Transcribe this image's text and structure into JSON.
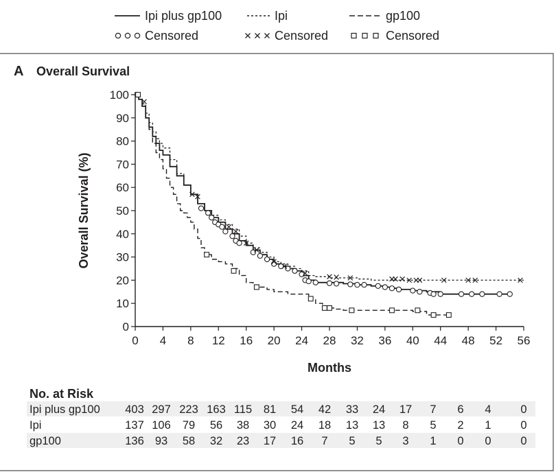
{
  "chart_data": {
    "type": "line",
    "panel_letter": "A",
    "title": "Overall Survival",
    "xlabel": "Months",
    "ylabel": "Overall Survival (%)",
    "xlim": [
      0,
      56
    ],
    "ylim": [
      0,
      100
    ],
    "xticks": [
      0,
      4,
      8,
      12,
      16,
      20,
      24,
      28,
      32,
      36,
      40,
      44,
      48,
      52,
      56
    ],
    "yticks": [
      0,
      10,
      20,
      30,
      40,
      50,
      60,
      70,
      80,
      90,
      100
    ],
    "grid": false,
    "legend_position": "top",
    "legend": {
      "lines": [
        {
          "label": "Ipi plus gp100",
          "style": "solid"
        },
        {
          "label": "Ipi",
          "style": "dotted"
        },
        {
          "label": "gp100",
          "style": "dashed"
        }
      ],
      "censored": [
        {
          "label": "Censored",
          "marker": "circle"
        },
        {
          "label": "Censored",
          "marker": "x"
        },
        {
          "label": "Censored",
          "marker": "square"
        }
      ]
    },
    "series": [
      {
        "name": "Ipi plus gp100",
        "style": "solid",
        "marker": "circle",
        "x": [
          0,
          0.5,
          1,
          1.5,
          2,
          2.5,
          3,
          3.5,
          4,
          5,
          6,
          7,
          8,
          9,
          10,
          11,
          12,
          13,
          14,
          15,
          16,
          17,
          18,
          19,
          20,
          21,
          22,
          23,
          24,
          25,
          26,
          28,
          30,
          32,
          34,
          36,
          37,
          38,
          40,
          42,
          44,
          48,
          52,
          54
        ],
        "y": [
          100,
          98,
          95,
          90,
          86,
          82,
          79,
          76,
          74,
          69,
          65,
          61,
          57,
          53,
          50,
          47,
          45,
          42,
          40,
          37,
          35,
          33,
          31,
          29,
          27,
          26,
          25,
          24,
          22,
          20,
          19,
          19,
          18.5,
          18,
          17.5,
          17,
          16.5,
          16,
          15.5,
          15,
          14,
          14,
          14,
          14
        ],
        "censored": [
          [
            0.3,
            100
          ],
          [
            9.5,
            51
          ],
          [
            10.5,
            49
          ],
          [
            11,
            47
          ],
          [
            11.5,
            45
          ],
          [
            12,
            44
          ],
          [
            12.5,
            43
          ],
          [
            13,
            41
          ],
          [
            14,
            39
          ],
          [
            14.5,
            37
          ],
          [
            15,
            36
          ],
          [
            17,
            32
          ],
          [
            18,
            30.5
          ],
          [
            19,
            29
          ],
          [
            20,
            27
          ],
          [
            21,
            26
          ],
          [
            22,
            25
          ],
          [
            23,
            24
          ],
          [
            24,
            22.5
          ],
          [
            24.5,
            20
          ],
          [
            25,
            19.5
          ],
          [
            26,
            19
          ],
          [
            28,
            18.7
          ],
          [
            29,
            18.5
          ],
          [
            31,
            18.2
          ],
          [
            32,
            18
          ],
          [
            33,
            18
          ],
          [
            35,
            17.5
          ],
          [
            36,
            17
          ],
          [
            37,
            16.5
          ],
          [
            38,
            16
          ],
          [
            40,
            15.5
          ],
          [
            41,
            15
          ],
          [
            42.5,
            14.5
          ],
          [
            43,
            14
          ],
          [
            44,
            14
          ],
          [
            47,
            14
          ],
          [
            48.5,
            14
          ],
          [
            50,
            14
          ],
          [
            52.5,
            14
          ],
          [
            54,
            14
          ]
        ]
      },
      {
        "name": "Ipi",
        "style": "dotted",
        "marker": "x",
        "x": [
          0,
          0.5,
          1,
          1.5,
          2,
          2.5,
          3,
          3.5,
          4,
          5,
          6,
          7,
          8,
          9,
          10,
          11,
          12,
          13,
          14,
          15,
          16,
          17,
          18,
          19,
          20,
          21,
          22,
          23,
          24,
          25,
          26,
          28,
          30,
          32,
          34,
          36,
          38,
          40,
          44,
          48,
          52,
          56
        ],
        "y": [
          100,
          98,
          96,
          92,
          88,
          84,
          81,
          79,
          77,
          72,
          66,
          61,
          57,
          53,
          50,
          48,
          46,
          44,
          42,
          39,
          36,
          34,
          32,
          30,
          28,
          27,
          26,
          25,
          24,
          22,
          21.5,
          21,
          21,
          20.5,
          20,
          20,
          20,
          20,
          20,
          20,
          20,
          20
        ],
        "censored": [
          [
            1.3,
            97
          ],
          [
            8.2,
            57
          ],
          [
            9,
            56
          ],
          [
            13.5,
            43
          ],
          [
            14.5,
            41
          ],
          [
            16,
            36
          ],
          [
            17.5,
            33
          ],
          [
            20,
            28
          ],
          [
            21.5,
            26
          ],
          [
            24.5,
            23
          ],
          [
            28,
            21.5
          ],
          [
            29,
            21.3
          ],
          [
            31,
            21
          ],
          [
            37,
            20.5
          ],
          [
            37.5,
            20.5
          ],
          [
            38.5,
            20.5
          ],
          [
            39.5,
            20
          ],
          [
            40.5,
            20
          ],
          [
            41,
            20
          ],
          [
            44.5,
            20
          ],
          [
            48,
            20
          ],
          [
            49,
            20
          ],
          [
            55.5,
            20
          ]
        ]
      },
      {
        "name": "gp100",
        "style": "dashed",
        "marker": "square",
        "x": [
          0,
          0.5,
          1,
          1.5,
          2,
          2.5,
          3,
          3.5,
          4,
          4.5,
          5,
          5.5,
          6,
          6.5,
          7,
          7.5,
          8,
          8.5,
          9,
          9.5,
          10,
          11,
          12,
          13,
          14,
          15,
          16,
          17,
          18,
          19,
          20,
          22,
          24,
          25,
          26,
          27,
          28,
          29,
          30,
          32,
          34,
          36,
          38,
          40,
          42,
          43,
          44,
          45
        ],
        "y": [
          100,
          98,
          95,
          90,
          85,
          79,
          75,
          72,
          68,
          64,
          60,
          57,
          53,
          50,
          49,
          47,
          45,
          42,
          38,
          34,
          31,
          29,
          28,
          27,
          25,
          22,
          19,
          18,
          17,
          16,
          15,
          14,
          14,
          12,
          10,
          8,
          8,
          7.5,
          7,
          7,
          7,
          7,
          7,
          6.5,
          5,
          5,
          5,
          5
        ],
        "censored": [
          [
            0.4,
            100
          ],
          [
            10.3,
            31
          ],
          [
            14.2,
            24
          ],
          [
            17.5,
            17
          ],
          [
            25.3,
            12
          ],
          [
            27.3,
            8
          ],
          [
            28,
            8
          ],
          [
            31.2,
            7
          ],
          [
            37,
            7
          ],
          [
            40.7,
            7
          ],
          [
            43,
            5
          ],
          [
            45.2,
            5
          ]
        ]
      }
    ]
  },
  "risk_table": {
    "title": "No. at Risk",
    "rows": [
      {
        "label": "Ipi plus gp100",
        "values": [
          "403",
          "297",
          "223",
          "163",
          "115",
          "81",
          "54",
          "42",
          "33",
          "24",
          "17",
          "7",
          "6",
          "4",
          "0"
        ]
      },
      {
        "label": "Ipi",
        "values": [
          "137",
          "106",
          "79",
          "56",
          "38",
          "30",
          "24",
          "18",
          "13",
          "13",
          "8",
          "5",
          "2",
          "1",
          "0"
        ]
      },
      {
        "label": "gp100",
        "values": [
          "136",
          "93",
          "58",
          "32",
          "23",
          "17",
          "16",
          "7",
          "5",
          "5",
          "3",
          "1",
          "0",
          "0",
          "0"
        ]
      }
    ]
  },
  "colors": {
    "ink": "#231f20",
    "frame": "#6d6e71",
    "risk_row_shade": "#efeff0"
  }
}
